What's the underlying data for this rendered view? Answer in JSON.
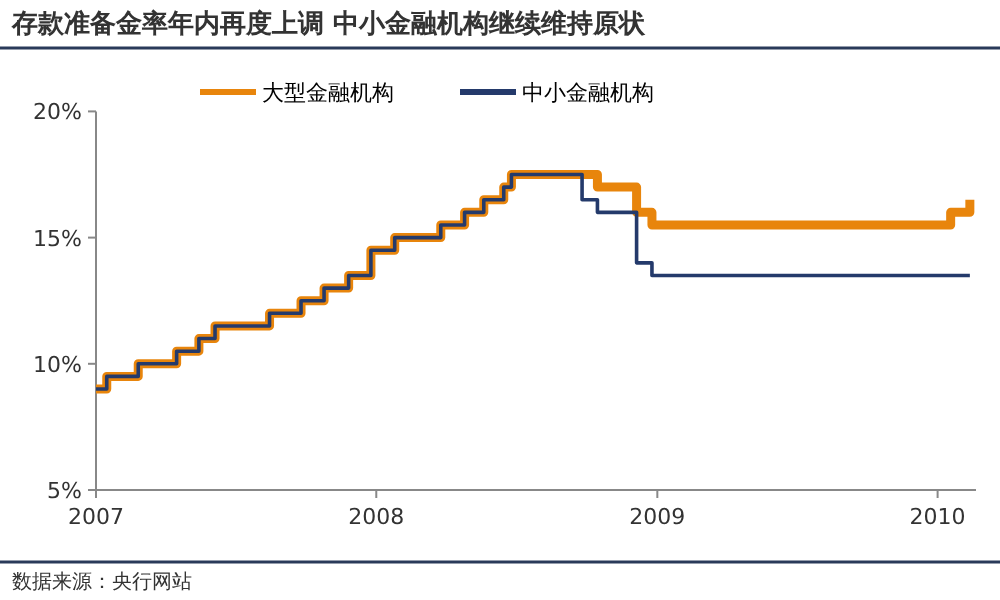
{
  "chart_data": {
    "type": "step",
    "title": "存款准备金率年内再度上调 中小金融机构继续维持原状",
    "annotations": [
      "数据来源：央行网站"
    ],
    "series": [
      {
        "name": "大型金融机构",
        "color": "#e8850c",
        "x": [
          "2007-01-01",
          "2007-01-15",
          "2007-02-25",
          "2007-04-16",
          "2007-05-15",
          "2007-06-05",
          "2007-08-15",
          "2007-09-25",
          "2007-10-25",
          "2007-11-26",
          "2007-12-25",
          "2008-01-25",
          "2008-03-25",
          "2008-04-25",
          "2008-05-20",
          "2008-06-15",
          "2008-06-25",
          "2008-10-15",
          "2008-12-05",
          "2008-12-25",
          "2010-01-18",
          "2010-02-12"
        ],
        "values": [
          9,
          9.5,
          10,
          10.5,
          11,
          11.5,
          12,
          12.5,
          13,
          13.5,
          14.5,
          15,
          15.5,
          16,
          16.5,
          17,
          17.5,
          17,
          16,
          15.5,
          16,
          16.5
        ]
      },
      {
        "name": "中小金融机构",
        "color": "#243a6b",
        "x": [
          "2007-01-01",
          "2007-01-15",
          "2007-02-25",
          "2007-04-16",
          "2007-05-15",
          "2007-06-05",
          "2007-08-15",
          "2007-09-25",
          "2007-10-25",
          "2007-11-26",
          "2007-12-25",
          "2008-01-25",
          "2008-03-25",
          "2008-04-25",
          "2008-05-20",
          "2008-06-15",
          "2008-06-25",
          "2008-09-25",
          "2008-10-15",
          "2008-12-05",
          "2008-12-25",
          "2010-02-12"
        ],
        "values": [
          9,
          9.5,
          10,
          10.5,
          11,
          11.5,
          12,
          12.5,
          13,
          13.5,
          14.5,
          15,
          15.5,
          16,
          16.5,
          17,
          17.5,
          16.5,
          16,
          14,
          13.5,
          13.5
        ]
      }
    ],
    "xlim": [
      "2007-01-01",
      "2010-02-20"
    ],
    "xticks": [
      "2007",
      "2008",
      "2009",
      "2010"
    ],
    "ylim": [
      5,
      20
    ],
    "yticks": [
      {
        "value": 5,
        "label": "5%"
      },
      {
        "value": 10,
        "label": "10%"
      },
      {
        "value": 15,
        "label": "15%"
      },
      {
        "value": 20,
        "label": "20%"
      }
    ],
    "grid": false,
    "legend": "top",
    "marker": "none",
    "line_style": "solid"
  }
}
